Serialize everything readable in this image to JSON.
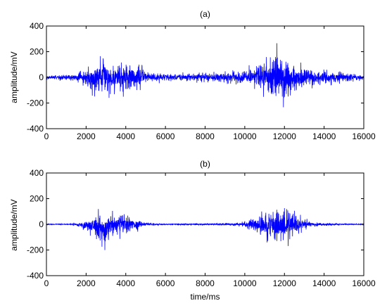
{
  "chart_data": [
    {
      "type": "line",
      "title": "(a)",
      "xlabel": "",
      "ylabel": "amplitude/mV",
      "xlim": [
        0,
        16000
      ],
      "ylim": [
        -400,
        400
      ],
      "x_ticks": [
        0,
        2000,
        4000,
        6000,
        8000,
        10000,
        12000,
        14000,
        16000
      ],
      "y_ticks": [
        -400,
        -200,
        0,
        200,
        400
      ],
      "grid": false,
      "series": [
        {
          "color": "#0000ff",
          "x": [
            0,
            500,
            1000,
            1500,
            2000,
            2300,
            2500,
            2600,
            2800,
            3000,
            3200,
            3400,
            3600,
            3800,
            4000,
            4200,
            4400,
            4600,
            4800,
            5000,
            5500,
            6000,
            6500,
            7000,
            7500,
            8000,
            8500,
            9000,
            9500,
            10000,
            10300,
            10600,
            10900,
            11200,
            11400,
            11600,
            11800,
            12000,
            12200,
            12400,
            12600,
            12800,
            13000,
            13300,
            13600,
            14000,
            14500,
            15000,
            15500,
            16000
          ],
          "y_max": [
            20,
            25,
            30,
            40,
            80,
            130,
            170,
            200,
            190,
            180,
            170,
            150,
            165,
            180,
            175,
            160,
            150,
            140,
            110,
            70,
            50,
            50,
            40,
            40,
            50,
            50,
            50,
            55,
            60,
            80,
            100,
            120,
            150,
            190,
            220,
            280,
            270,
            260,
            200,
            160,
            140,
            120,
            100,
            90,
            80,
            70,
            60,
            50,
            40,
            30
          ],
          "y_min": [
            -20,
            -25,
            -30,
            -40,
            -90,
            -150,
            -170,
            -190,
            -180,
            -170,
            -160,
            -150,
            -160,
            -170,
            -165,
            -150,
            -140,
            -130,
            -100,
            -60,
            -50,
            -40,
            -40,
            -40,
            -45,
            -45,
            -50,
            -55,
            -60,
            -80,
            -100,
            -120,
            -150,
            -180,
            -210,
            -250,
            -280,
            -290,
            -220,
            -180,
            -150,
            -130,
            -110,
            -100,
            -90,
            -80,
            -60,
            -50,
            -40,
            -30
          ]
        }
      ]
    },
    {
      "type": "line",
      "title": "(b)",
      "xlabel": "time/ms",
      "ylabel": "amplitude/mV",
      "xlim": [
        0,
        16000
      ],
      "ylim": [
        -400,
        400
      ],
      "x_ticks": [
        0,
        2000,
        4000,
        6000,
        8000,
        10000,
        12000,
        14000,
        16000
      ],
      "y_ticks": [
        -400,
        -200,
        0,
        200,
        400
      ],
      "grid": false,
      "series": [
        {
          "color": "#0000ff",
          "x": [
            0,
            500,
            1000,
            1500,
            2000,
            2300,
            2500,
            2600,
            2800,
            3000,
            3200,
            3400,
            3600,
            3800,
            4000,
            4200,
            4400,
            4600,
            4800,
            5000,
            5500,
            6000,
            6500,
            7000,
            7500,
            8000,
            8500,
            9000,
            9500,
            10000,
            10300,
            10600,
            10900,
            11200,
            11400,
            11600,
            11800,
            12000,
            12200,
            12400,
            12600,
            12800,
            13000,
            13300,
            13600,
            14000,
            14500,
            15000,
            15500,
            16000
          ],
          "y_max": [
            5,
            5,
            5,
            15,
            50,
            90,
            120,
            130,
            130,
            125,
            120,
            110,
            100,
            115,
            100,
            90,
            80,
            60,
            30,
            15,
            10,
            8,
            8,
            8,
            8,
            8,
            10,
            12,
            15,
            30,
            60,
            90,
            110,
            140,
            170,
            200,
            230,
            200,
            170,
            150,
            120,
            90,
            60,
            30,
            20,
            15,
            10,
            8,
            6,
            5
          ],
          "y_min": [
            -5,
            -5,
            -5,
            -15,
            -60,
            -110,
            -140,
            -170,
            -230,
            -200,
            -160,
            -130,
            -110,
            -120,
            -110,
            -90,
            -80,
            -60,
            -30,
            -15,
            -10,
            -8,
            -8,
            -8,
            -8,
            -8,
            -10,
            -12,
            -15,
            -30,
            -60,
            -100,
            -130,
            -160,
            -190,
            -210,
            -230,
            -200,
            -170,
            -140,
            -110,
            -80,
            -50,
            -30,
            -20,
            -15,
            -10,
            -8,
            -6,
            -5
          ]
        }
      ]
    }
  ]
}
